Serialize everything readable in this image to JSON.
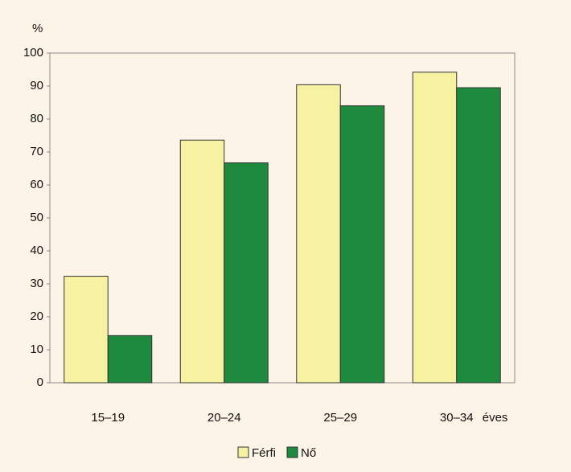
{
  "chart_data": {
    "type": "bar",
    "ylabel": "%",
    "xlabel": "éves",
    "categories": [
      "15–19",
      "20–24",
      "25–29",
      "30–34"
    ],
    "series": [
      {
        "name": "Férfi",
        "color": "#f6f2a2",
        "values": [
          32.3,
          73.6,
          90.4,
          94.2
        ]
      },
      {
        "name": "Nő",
        "color": "#1e8a3e",
        "values": [
          14.3,
          66.7,
          84.0,
          89.5
        ]
      }
    ],
    "ylim": [
      0,
      100
    ],
    "yticks": [
      0,
      10,
      20,
      30,
      40,
      50,
      60,
      70,
      80,
      90,
      100
    ],
    "grid": false,
    "legend": "bottom"
  }
}
